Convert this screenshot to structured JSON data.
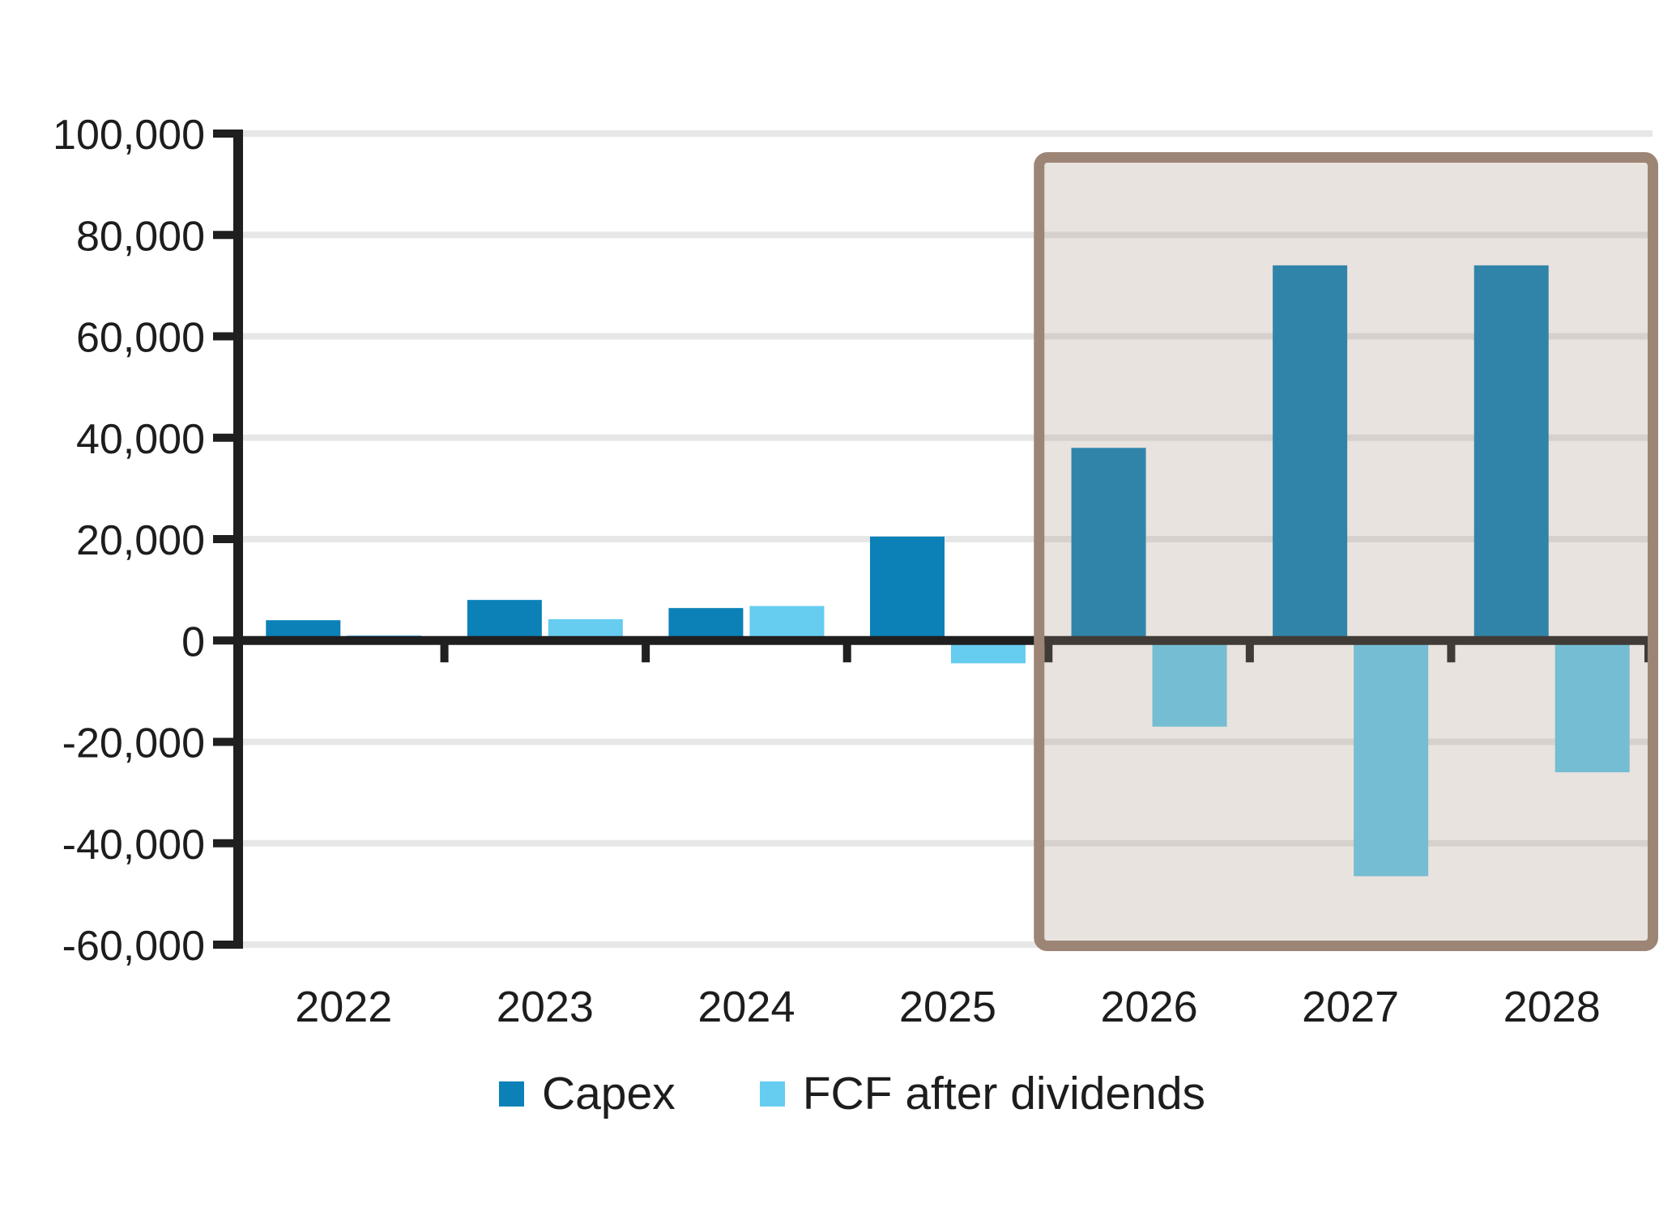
{
  "chart_data": {
    "type": "bar",
    "title": "",
    "categories": [
      "2022",
      "2023",
      "2024",
      "2025",
      "2026",
      "2027",
      "2028"
    ],
    "series": [
      {
        "name": "Capex",
        "color": "#0b81b8",
        "values": [
          4000,
          8000,
          6400,
          20500,
          38000,
          74000,
          74000
        ]
      },
      {
        "name": "FCF after dividends",
        "color": "#66ccf0",
        "values": [
          1000,
          4200,
          6800,
          -4500,
          -17000,
          -46500,
          -26000
        ]
      }
    ],
    "xlabel": "",
    "ylabel": "",
    "ylim": [
      -60000,
      100000
    ],
    "ytick_step": 20000,
    "ytick_labels": [
      "100,000",
      "80,000",
      "60,000",
      "40,000",
      "20,000",
      "0",
      "-20,000",
      "-40,000",
      "-60,000"
    ],
    "ytick_values": [
      100000,
      80000,
      60000,
      40000,
      20000,
      0,
      -20000,
      -40000,
      -60000
    ],
    "grid": "horizontal",
    "gridline_color": "#e7e7e7",
    "axis_color": "#1f1f1f",
    "text_color": "#1d1d1d",
    "background_color": "#ffffff",
    "legend_position": "bottom",
    "highlight_region": {
      "from_category": "2026",
      "to_category": "2028",
      "fill": "rgba(163,144,123,0.25)",
      "border_color": "#9d8575"
    }
  }
}
